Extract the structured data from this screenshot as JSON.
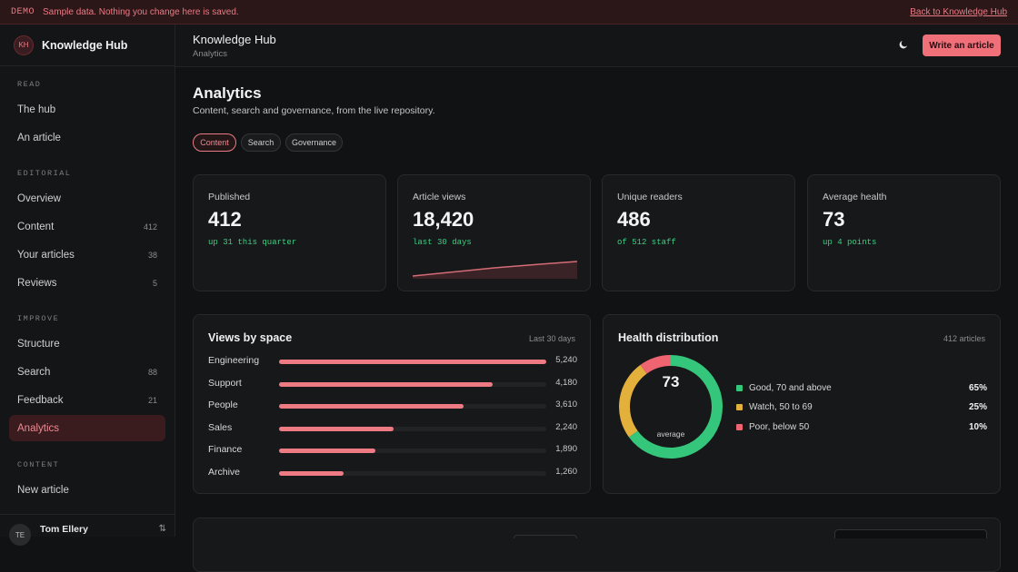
{
  "banner": {
    "tag": "DEMO",
    "message": "Sample data. Nothing you change here is saved.",
    "back": "Back to Knowledge Hub"
  },
  "brand": {
    "initials": "KH",
    "name": "Knowledge Hub"
  },
  "sidebar": {
    "sections": [
      {
        "label": "READ"
      },
      {
        "label": "EDITORIAL"
      },
      {
        "label": "IMPROVE"
      },
      {
        "label": "CONTENT"
      }
    ],
    "items": [
      {
        "label": "The hub",
        "count": ""
      },
      {
        "label": "An article",
        "count": ""
      },
      {
        "label": "Overview",
        "count": ""
      },
      {
        "label": "Content",
        "count": "412"
      },
      {
        "label": "Your articles",
        "count": "38"
      },
      {
        "label": "Reviews",
        "count": "5"
      },
      {
        "label": "Structure",
        "count": ""
      },
      {
        "label": "Search",
        "count": "88"
      },
      {
        "label": "Feedback",
        "count": "21"
      },
      {
        "label": "Analytics",
        "count": ""
      },
      {
        "label": "New article",
        "count": ""
      }
    ],
    "user": {
      "initials": "TE",
      "name": "Tom Ellery"
    }
  },
  "topbar": {
    "title": "Knowledge Hub",
    "crumb": "Analytics",
    "write": "Write an article"
  },
  "page": {
    "title": "Analytics",
    "subtitle": "Content, search and governance, from the live repository.",
    "tabs": [
      "Content",
      "Search",
      "Governance"
    ]
  },
  "stats": [
    {
      "label": "Published",
      "value": "412",
      "note": "up 31 this quarter"
    },
    {
      "label": "Article views",
      "value": "18,420",
      "note": "last 30 days"
    },
    {
      "label": "Unique readers",
      "value": "486",
      "note": "of 512 staff"
    },
    {
      "label": "Average health",
      "value": "73",
      "note": "up 4 points"
    }
  ],
  "views": {
    "title": "Views by space",
    "meta": "Last 30 days",
    "rows": [
      {
        "name": "Engineering",
        "value": 5240,
        "label": "5,240"
      },
      {
        "name": "Support",
        "value": 4180,
        "label": "4,180"
      },
      {
        "name": "People",
        "value": 3610,
        "label": "3,610"
      },
      {
        "name": "Sales",
        "value": 2240,
        "label": "2,240"
      },
      {
        "name": "Finance",
        "value": 1890,
        "label": "1,890"
      },
      {
        "name": "Archive",
        "value": 1260,
        "label": "1,260"
      }
    ]
  },
  "health": {
    "title": "Health distribution",
    "meta": "412 articles",
    "center_value": "73",
    "center_label": "average",
    "legend": [
      {
        "label": "Good, 70 and above",
        "pct": "65%",
        "value": 65,
        "color": "#34c77b"
      },
      {
        "label": "Watch, 50 to 69",
        "pct": "25%",
        "value": 25,
        "color": "#e3b03c"
      },
      {
        "label": "Poor, below 50",
        "pct": "10%",
        "value": 10,
        "color": "#ee6470"
      }
    ]
  },
  "colors": {
    "accent": "#f0707a",
    "positive": "#3ecf83"
  }
}
